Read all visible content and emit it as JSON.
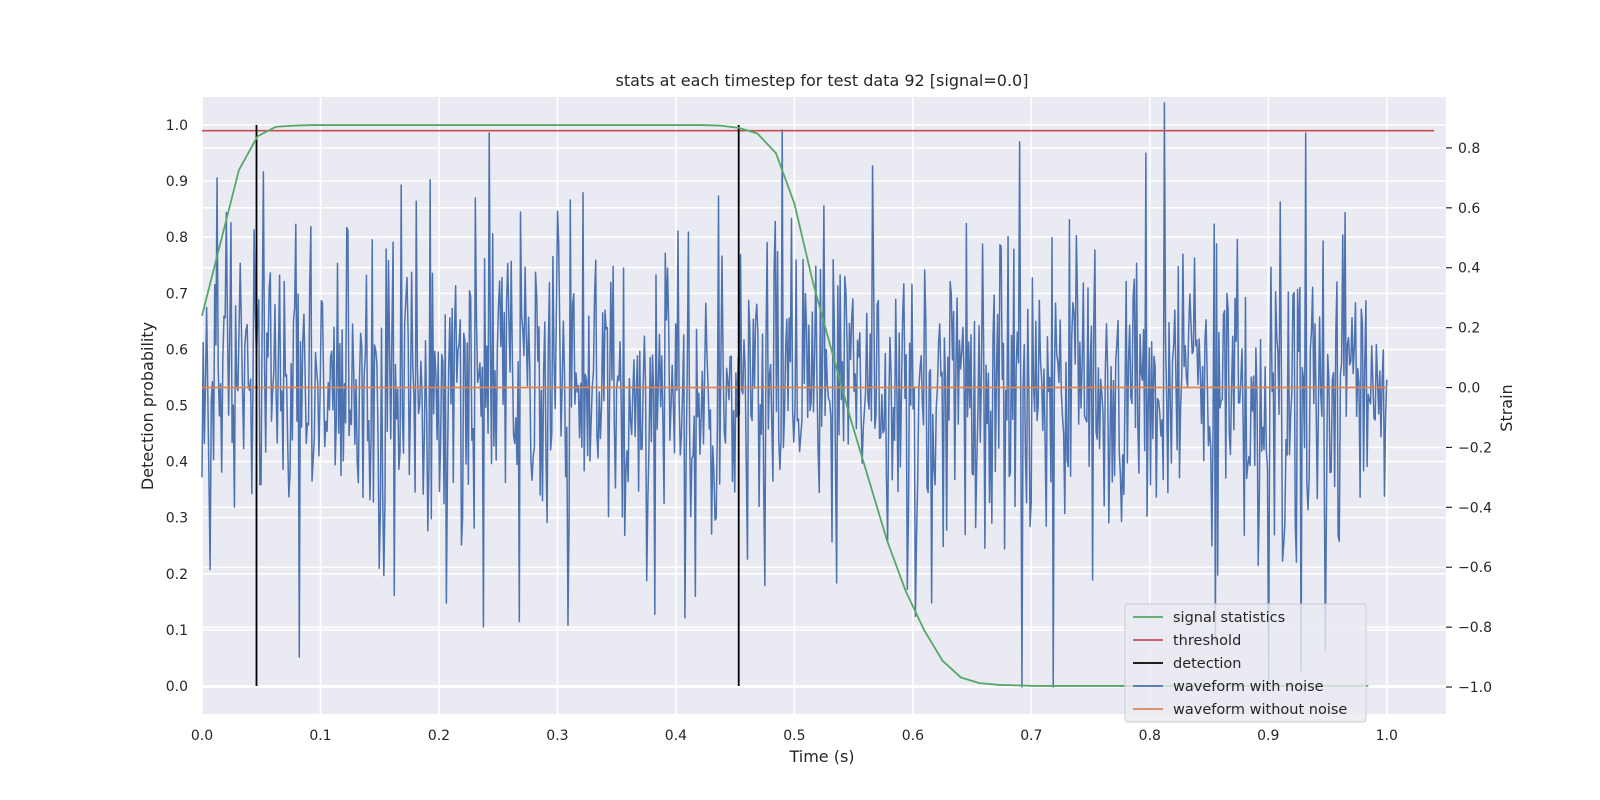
{
  "chart_data": {
    "type": "line",
    "title": "stats at each timestep for test data 92 [signal=0.0]",
    "xlabel": "Time (s)",
    "ylabel": "Detection probability",
    "y2label": "Strain",
    "xlim": [
      0.0,
      1.05
    ],
    "ylim": [
      -0.05,
      1.05
    ],
    "y2lim": [
      -1.09,
      0.97
    ],
    "grid": true,
    "legend_position": "lower-right",
    "xticks": [
      "0.0",
      "0.1",
      "0.2",
      "0.3",
      "0.4",
      "0.5",
      "0.6",
      "0.7",
      "0.8",
      "0.9",
      "1.0"
    ],
    "yticks": [
      "0.0",
      "0.1",
      "0.2",
      "0.3",
      "0.4",
      "0.5",
      "0.6",
      "0.7",
      "0.8",
      "0.9",
      "1.0"
    ],
    "y2ticks": [
      "−1.0",
      "−0.8",
      "−0.6",
      "−0.4",
      "−0.2",
      "0.0",
      "0.2",
      "0.4",
      "0.6",
      "0.8"
    ],
    "series": [
      {
        "name": "signal statistics",
        "color": "#55a868",
        "axis": "left",
        "x": [
          0.0,
          0.0156,
          0.0312,
          0.0469,
          0.0625,
          0.0781,
          0.0938,
          0.1094,
          0.125,
          0.1406,
          0.1562,
          0.1719,
          0.1875,
          0.2031,
          0.2188,
          0.2344,
          0.25,
          0.2656,
          0.2812,
          0.2969,
          0.3125,
          0.3281,
          0.3438,
          0.3594,
          0.375,
          0.3906,
          0.4062,
          0.4219,
          0.4375,
          0.4531,
          0.4688,
          0.4844,
          0.5,
          0.5156,
          0.5312,
          0.5469,
          0.5625,
          0.5781,
          0.5938,
          0.6094,
          0.625,
          0.6406,
          0.6562,
          0.6719,
          0.6875,
          0.7031,
          0.7188,
          0.7344,
          0.75,
          0.7656,
          0.7812,
          0.7969,
          0.8125,
          0.8281,
          0.8438,
          0.8594,
          0.875,
          0.8906,
          0.9062,
          0.9219,
          0.9375,
          0.9531,
          0.9688,
          0.9844
        ],
        "y": [
          0.66,
          0.79,
          0.92,
          0.98,
          0.997,
          0.999,
          1.0,
          1.0,
          1.0,
          1.0,
          1.0,
          1.0,
          1.0,
          1.0,
          1.0,
          1.0,
          1.0,
          1.0,
          1.0,
          1.0,
          1.0,
          1.0,
          1.0,
          1.0,
          1.0,
          1.0,
          1.0,
          1.0,
          0.999,
          0.995,
          0.985,
          0.95,
          0.86,
          0.72,
          0.6,
          0.48,
          0.37,
          0.26,
          0.17,
          0.1,
          0.045,
          0.015,
          0.005,
          0.002,
          0.001,
          0.0,
          0.0,
          0.0,
          0.0,
          0.0,
          0.0,
          0.0,
          0.0,
          0.0,
          0.0,
          0.0,
          0.0,
          0.0,
          0.0,
          0.0,
          0.0,
          0.0,
          0.0,
          0.0
        ]
      },
      {
        "name": "threshold",
        "color": "#c44e52",
        "axis": "left",
        "x": [
          0.0,
          1.04
        ],
        "y": [
          0.99,
          0.99
        ]
      },
      {
        "name": "detection",
        "color": "#000000",
        "axis": "left",
        "type": "vlines",
        "x": [
          0.046,
          0.453
        ],
        "ymin": 0.0,
        "ymax": 1.0
      },
      {
        "name": "waveform with noise",
        "color": "#4c72b0",
        "axis": "right",
        "n_points": 1024,
        "x_end": 1.0,
        "std": 0.26,
        "seed": 92,
        "spikes": [
          {
            "x": 0.013,
            "y": 0.7
          },
          {
            "x": 0.024,
            "y": 0.55
          },
          {
            "x": 0.052,
            "y": 0.72
          },
          {
            "x": 0.082,
            "y": -0.9
          },
          {
            "x": 0.206,
            "y": -0.72
          },
          {
            "x": 0.242,
            "y": 0.85
          },
          {
            "x": 0.49,
            "y": 0.86
          },
          {
            "x": 0.566,
            "y": 0.74
          },
          {
            "x": 0.69,
            "y": 0.82
          },
          {
            "x": 0.692,
            "y": -1.0
          },
          {
            "x": 0.718,
            "y": -1.0
          },
          {
            "x": 0.812,
            "y": 0.95
          },
          {
            "x": 0.855,
            "y": -0.85
          },
          {
            "x": 0.932,
            "y": 0.85
          },
          {
            "x": 0.948,
            "y": -0.88
          }
        ]
      },
      {
        "name": "waveform without noise",
        "color": "#dd8452",
        "axis": "right",
        "x": [
          0.0,
          1.0
        ],
        "y": [
          0.0,
          0.0
        ]
      }
    ]
  }
}
